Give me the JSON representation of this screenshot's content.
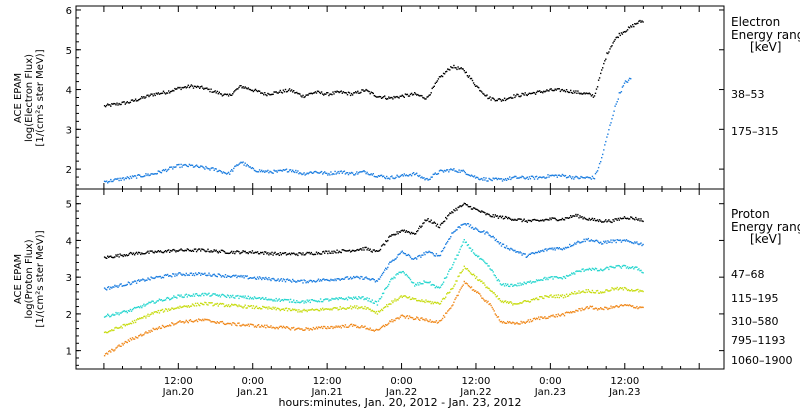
{
  "chart_data": [
    {
      "panel": "electron",
      "type": "scatter",
      "ylabel_lines": [
        "ACE EPAM",
        "log(Electron Flux)",
        "[1/(cm²s ster MeV)]"
      ],
      "ylim": [
        1.5,
        6.1
      ],
      "yticks": [
        2,
        3,
        4,
        5,
        6
      ],
      "legend_title_lines": [
        "Electron",
        "Energy ranges",
        "[keV]"
      ],
      "series": [
        {
          "name": "38–53",
          "color": "#000000",
          "x": [
            0,
            2,
            4,
            6,
            8,
            10,
            12,
            14,
            16,
            18,
            20,
            22,
            24,
            26,
            28,
            30,
            32,
            34,
            36,
            38,
            40,
            42,
            44,
            46,
            48,
            50,
            52,
            54,
            56,
            58,
            60,
            62,
            64,
            66,
            68,
            70,
            72,
            74,
            76,
            78,
            79,
            80,
            81,
            82,
            83,
            84,
            85,
            86,
            87
          ],
          "y": [
            3.6,
            3.65,
            3.7,
            3.8,
            3.9,
            3.95,
            4.05,
            4.1,
            4.05,
            3.95,
            3.85,
            4.1,
            4.0,
            3.9,
            3.95,
            4.0,
            3.85,
            3.95,
            3.9,
            3.95,
            3.9,
            4.0,
            3.85,
            3.8,
            3.85,
            3.9,
            3.8,
            4.3,
            4.6,
            4.5,
            4.1,
            3.8,
            3.75,
            3.85,
            3.9,
            3.95,
            4.0,
            4.0,
            3.95,
            3.9,
            3.85,
            4.4,
            4.9,
            5.2,
            5.4,
            5.5,
            5.6,
            5.7,
            5.75
          ]
        },
        {
          "name": "175–315",
          "color": "#1f7fe0",
          "x": [
            0,
            2,
            4,
            6,
            8,
            10,
            12,
            14,
            16,
            18,
            20,
            22,
            24,
            26,
            28,
            30,
            32,
            34,
            36,
            38,
            40,
            42,
            44,
            46,
            48,
            50,
            52,
            54,
            56,
            58,
            60,
            62,
            64,
            66,
            68,
            70,
            72,
            74,
            76,
            78,
            79,
            80,
            81,
            82,
            83,
            84,
            85
          ],
          "y": [
            1.7,
            1.75,
            1.8,
            1.85,
            1.9,
            2.0,
            2.1,
            2.1,
            2.05,
            2.0,
            1.9,
            2.2,
            2.0,
            1.95,
            1.95,
            2.0,
            1.9,
            1.95,
            1.9,
            1.95,
            1.9,
            1.95,
            1.85,
            1.8,
            1.85,
            1.9,
            1.75,
            1.95,
            2.0,
            1.95,
            1.8,
            1.75,
            1.75,
            1.8,
            1.8,
            1.8,
            1.85,
            1.85,
            1.8,
            1.8,
            1.8,
            2.2,
            2.8,
            3.4,
            3.9,
            4.2,
            4.3
          ]
        }
      ]
    },
    {
      "panel": "proton",
      "type": "scatter",
      "ylabel_lines": [
        "ACE EPAM",
        "log(Proton Flux)",
        "[1/(cm²s ster MeV)]"
      ],
      "ylim": [
        0.5,
        5.4
      ],
      "yticks": [
        1,
        2,
        3,
        4,
        5
      ],
      "legend_title_lines": [
        "Proton",
        "Energy ranges",
        "[keV]"
      ],
      "series": [
        {
          "name": "47–68",
          "color": "#000000",
          "x": [
            0,
            4,
            8,
            12,
            16,
            20,
            24,
            28,
            32,
            36,
            40,
            42,
            44,
            46,
            48,
            50,
            52,
            54,
            56,
            58,
            60,
            62,
            64,
            66,
            68,
            70,
            72,
            74,
            76,
            78,
            80,
            82,
            84,
            86,
            87
          ],
          "y": [
            3.55,
            3.65,
            3.7,
            3.75,
            3.75,
            3.7,
            3.7,
            3.65,
            3.65,
            3.7,
            3.75,
            3.8,
            3.7,
            4.1,
            4.3,
            4.2,
            4.6,
            4.4,
            4.8,
            5.0,
            4.85,
            4.7,
            4.65,
            4.6,
            4.55,
            4.55,
            4.6,
            4.6,
            4.7,
            4.6,
            4.55,
            4.55,
            4.65,
            4.6,
            4.55
          ]
        },
        {
          "name": "115–195",
          "color": "#1f7fe0",
          "x": [
            0,
            4,
            8,
            12,
            16,
            20,
            24,
            28,
            32,
            36,
            40,
            42,
            44,
            46,
            48,
            50,
            52,
            54,
            56,
            58,
            60,
            62,
            64,
            66,
            68,
            70,
            72,
            74,
            76,
            78,
            80,
            82,
            84,
            86,
            87
          ],
          "y": [
            2.7,
            2.85,
            3.0,
            3.1,
            3.1,
            3.05,
            3.0,
            2.95,
            2.9,
            2.95,
            3.0,
            3.0,
            2.9,
            3.4,
            3.7,
            3.5,
            3.7,
            3.6,
            4.2,
            4.5,
            4.3,
            4.2,
            3.9,
            3.75,
            3.6,
            3.7,
            3.8,
            3.8,
            3.95,
            4.05,
            3.95,
            4.0,
            4.0,
            3.95,
            3.9
          ]
        },
        {
          "name": "310–580",
          "color": "#29d6cf",
          "x": [
            0,
            4,
            8,
            12,
            16,
            20,
            24,
            28,
            32,
            36,
            40,
            42,
            44,
            46,
            48,
            50,
            52,
            54,
            56,
            58,
            60,
            62,
            64,
            66,
            68,
            70,
            72,
            74,
            76,
            78,
            80,
            82,
            84,
            86,
            87
          ],
          "y": [
            1.95,
            2.1,
            2.35,
            2.5,
            2.55,
            2.5,
            2.45,
            2.4,
            2.35,
            2.4,
            2.45,
            2.45,
            2.3,
            2.9,
            3.2,
            2.8,
            2.9,
            2.7,
            3.3,
            4.0,
            3.6,
            3.3,
            2.8,
            2.8,
            2.85,
            2.95,
            3.0,
            3.0,
            3.15,
            3.25,
            3.2,
            3.3,
            3.3,
            3.25,
            3.15
          ]
        },
        {
          "name": "795–1193",
          "color": "#c8dc14",
          "x": [
            0,
            4,
            8,
            12,
            16,
            20,
            24,
            28,
            32,
            36,
            40,
            42,
            44,
            46,
            48,
            50,
            52,
            54,
            56,
            58,
            60,
            62,
            64,
            66,
            68,
            70,
            72,
            74,
            76,
            78,
            80,
            82,
            84,
            86,
            87
          ],
          "y": [
            1.5,
            1.75,
            2.05,
            2.2,
            2.3,
            2.25,
            2.2,
            2.15,
            2.1,
            2.15,
            2.2,
            2.2,
            2.05,
            2.3,
            2.5,
            2.4,
            2.35,
            2.3,
            2.7,
            3.3,
            3.0,
            2.7,
            2.35,
            2.3,
            2.35,
            2.45,
            2.5,
            2.5,
            2.6,
            2.65,
            2.6,
            2.7,
            2.7,
            2.65,
            2.6
          ]
        },
        {
          "name": "1060–1900",
          "color": "#f08a1e",
          "x": [
            0,
            4,
            8,
            12,
            16,
            20,
            24,
            28,
            32,
            36,
            40,
            42,
            44,
            46,
            48,
            50,
            52,
            54,
            56,
            58,
            60,
            62,
            64,
            66,
            68,
            70,
            72,
            74,
            76,
            78,
            80,
            82,
            84,
            86,
            87
          ],
          "y": [
            0.9,
            1.3,
            1.6,
            1.8,
            1.85,
            1.75,
            1.7,
            1.65,
            1.6,
            1.65,
            1.7,
            1.65,
            1.55,
            1.8,
            1.95,
            1.9,
            1.85,
            1.8,
            2.2,
            2.9,
            2.6,
            2.3,
            1.8,
            1.75,
            1.8,
            1.9,
            1.95,
            2.0,
            2.1,
            2.2,
            2.15,
            2.2,
            2.25,
            2.2,
            2.2
          ]
        }
      ]
    }
  ],
  "x_axis": {
    "label": "hours:minutes, Jan. 20, 2012 - Jan. 23, 2012",
    "xlim": [
      -4.5,
      100
    ],
    "ticks": [
      {
        "hours": 12,
        "time": "12:00",
        "date": "Jan.20"
      },
      {
        "hours": 24,
        "time": "0:00",
        "date": "Jan.21"
      },
      {
        "hours": 36,
        "time": "12:00",
        "date": "Jan.21"
      },
      {
        "hours": 48,
        "time": "0:00",
        "date": "Jan.22"
      },
      {
        "hours": 60,
        "time": "12:00",
        "date": "Jan.22"
      },
      {
        "hours": 72,
        "time": "0:00",
        "date": "Jan.23"
      },
      {
        "hours": 84,
        "time": "12:00",
        "date": "Jan.23"
      }
    ]
  }
}
